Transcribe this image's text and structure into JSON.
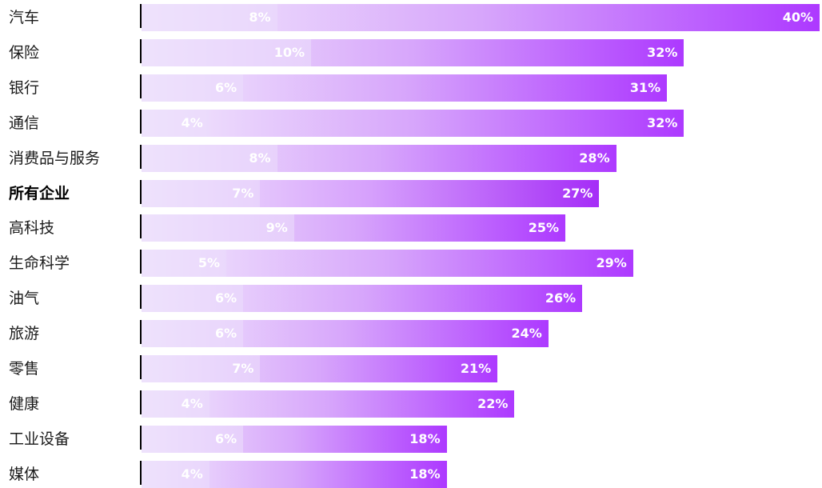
{
  "chart_data": {
    "type": "bar",
    "orientation": "horizontal",
    "title": "",
    "xlabel": "",
    "ylabel": "",
    "xlim": [
      0,
      40
    ],
    "grid": false,
    "categories": [
      "汽车",
      "保险",
      "银行",
      "通信",
      "消费品与服务",
      "所有企业",
      "高科技",
      "生命科学",
      "油气",
      "旅游",
      "零售",
      "健康",
      "工业设备",
      "媒体"
    ],
    "highlighted_category": "所有企业",
    "series": [
      {
        "values": [
          8,
          10,
          6,
          4,
          8,
          7,
          9,
          5,
          6,
          6,
          7,
          4,
          6,
          4
        ]
      },
      {
        "values": [
          40,
          32,
          31,
          32,
          28,
          27,
          25,
          29,
          26,
          24,
          21,
          22,
          18,
          18
        ]
      }
    ],
    "low_labels": [
      "8%",
      "10%",
      "6%",
      "4%",
      "8%",
      "7%",
      "9%",
      "5%",
      "6%",
      "6%",
      "7%",
      "4%",
      "6%",
      "4%"
    ],
    "high_labels": [
      "40%",
      "32%",
      "31%",
      "32%",
      "28%",
      "27%",
      "25%",
      "29%",
      "26%",
      "24%",
      "21%",
      "22%",
      "18%",
      "18%"
    ],
    "colors": {
      "bar_start": "#f3ebfc",
      "bar_mid": "#d7a6fb",
      "bar_end": "#ad39ff",
      "axis": "#000000",
      "label": "#ffffff"
    }
  }
}
